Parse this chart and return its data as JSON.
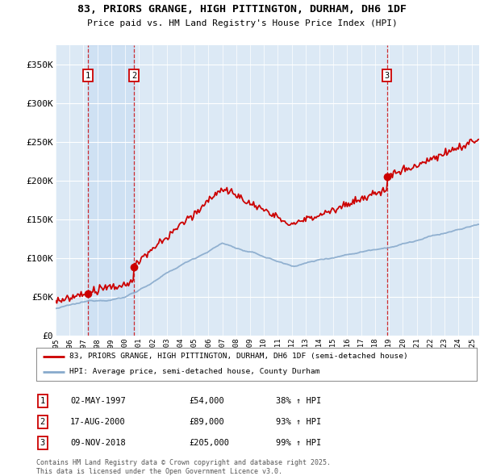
{
  "title": "83, PRIORS GRANGE, HIGH PITTINGTON, DURHAM, DH6 1DF",
  "subtitle": "Price paid vs. HM Land Registry's House Price Index (HPI)",
  "plot_bg_color": "#dce9f5",
  "ylim": [
    0,
    375000
  ],
  "yticks": [
    0,
    50000,
    100000,
    150000,
    200000,
    250000,
    300000,
    350000
  ],
  "ytick_labels": [
    "£0",
    "£50K",
    "£100K",
    "£150K",
    "£200K",
    "£250K",
    "£300K",
    "£350K"
  ],
  "xmin": 1995.0,
  "xmax": 2025.5,
  "sales": [
    {
      "date": 1997.33,
      "price": 54000,
      "label": "1"
    },
    {
      "date": 2000.63,
      "price": 89000,
      "label": "2"
    },
    {
      "date": 2018.86,
      "price": 205000,
      "label": "3"
    }
  ],
  "legend_property_label": "83, PRIORS GRANGE, HIGH PITTINGTON, DURHAM, DH6 1DF (semi-detached house)",
  "legend_hpi_label": "HPI: Average price, semi-detached house, County Durham",
  "table_rows": [
    {
      "num": "1",
      "date": "02-MAY-1997",
      "price": "£54,000",
      "hpi": "38% ↑ HPI"
    },
    {
      "num": "2",
      "date": "17-AUG-2000",
      "price": "£89,000",
      "hpi": "93% ↑ HPI"
    },
    {
      "num": "3",
      "date": "09-NOV-2018",
      "price": "£205,000",
      "hpi": "99% ↑ HPI"
    }
  ],
  "footer": "Contains HM Land Registry data © Crown copyright and database right 2025.\nThis data is licensed under the Open Government Licence v3.0.",
  "red_color": "#cc0000",
  "hpi_color": "#88aacc"
}
